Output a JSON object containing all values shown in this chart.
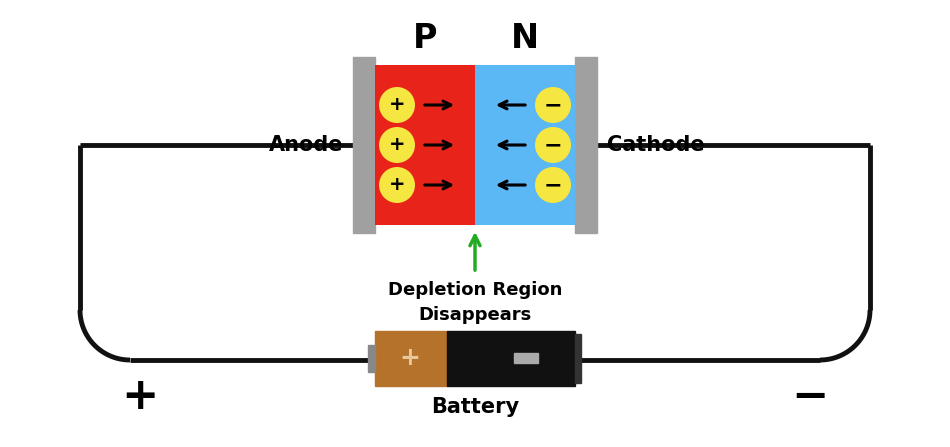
{
  "bg_color": "#ffffff",
  "p_color": "#e8231a",
  "n_color": "#5bb8f5",
  "yellow_color": "#f5e642",
  "gray_color": "#a0a0a0",
  "green_color": "#22aa22",
  "black": "#000000",
  "wire_color": "#111111",
  "wire_lw": 3.5,
  "p_label": "P",
  "n_label": "N",
  "anode_label": "Anode",
  "cathode_label": "Cathode",
  "depletion_label": "Depletion Region\nDisappears",
  "battery_label": "Battery",
  "brown_color": "#b5722a",
  "black_body": "#111111"
}
